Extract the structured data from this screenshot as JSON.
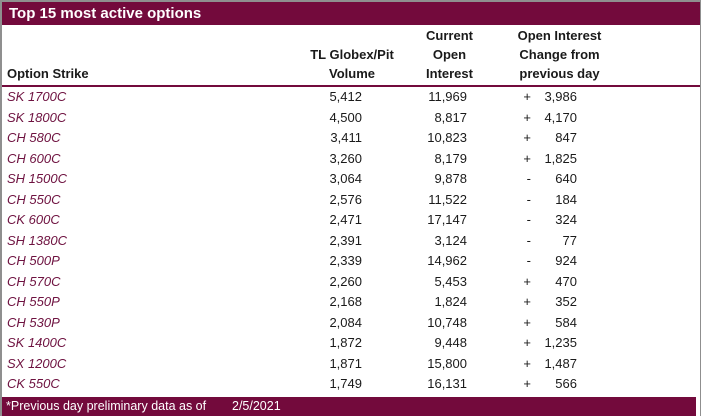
{
  "colors": {
    "maroon": "#730A3C",
    "strike_text": "#6E1240",
    "border_gray": "#8F8F8F"
  },
  "title": "Top 15 most active options",
  "table": {
    "columns": {
      "strike": [
        "Option Strike"
      ],
      "volume": [
        "TL Globex/Pit",
        "Volume"
      ],
      "open_interest": [
        "Current",
        "Open",
        "Interest"
      ],
      "change": [
        "Open Interest",
        "Change from",
        "previous day"
      ]
    },
    "rows": [
      {
        "strike": "SK 1700C",
        "volume": "5,412",
        "open_interest": "11,969",
        "change_sign": "+",
        "change_value": "3,986"
      },
      {
        "strike": "SK 1800C",
        "volume": "4,500",
        "open_interest": "8,817",
        "change_sign": "+",
        "change_value": "4,170"
      },
      {
        "strike": "CH 580C",
        "volume": "3,411",
        "open_interest": "10,823",
        "change_sign": "+",
        "change_value": "847"
      },
      {
        "strike": "CH 600C",
        "volume": "3,260",
        "open_interest": "8,179",
        "change_sign": "+",
        "change_value": "1,825"
      },
      {
        "strike": "SH 1500C",
        "volume": "3,064",
        "open_interest": "9,878",
        "change_sign": "-",
        "change_value": "640"
      },
      {
        "strike": "CH 550C",
        "volume": "2,576",
        "open_interest": "11,522",
        "change_sign": "-",
        "change_value": "184"
      },
      {
        "strike": "CK 600C",
        "volume": "2,471",
        "open_interest": "17,147",
        "change_sign": "-",
        "change_value": "324"
      },
      {
        "strike": "SH 1380C",
        "volume": "2,391",
        "open_interest": "3,124",
        "change_sign": "-",
        "change_value": "77"
      },
      {
        "strike": "CH 500P",
        "volume": "2,339",
        "open_interest": "14,962",
        "change_sign": "-",
        "change_value": "924"
      },
      {
        "strike": "CH 570C",
        "volume": "2,260",
        "open_interest": "5,453",
        "change_sign": "+",
        "change_value": "470"
      },
      {
        "strike": "CH 550P",
        "volume": "2,168",
        "open_interest": "1,824",
        "change_sign": "+",
        "change_value": "352"
      },
      {
        "strike": "CH 530P",
        "volume": "2,084",
        "open_interest": "10,748",
        "change_sign": "+",
        "change_value": "584"
      },
      {
        "strike": "SK 1400C",
        "volume": "1,872",
        "open_interest": "9,448",
        "change_sign": "+",
        "change_value": "1,235"
      },
      {
        "strike": "SX 1200C",
        "volume": "1,871",
        "open_interest": "15,800",
        "change_sign": "+",
        "change_value": "1,487"
      },
      {
        "strike": "CK 550C",
        "volume": "1,749",
        "open_interest": "16,131",
        "change_sign": "+",
        "change_value": "566"
      }
    ]
  },
  "footer": {
    "note": "*Previous day preliminary data as of",
    "date": "2/5/2021"
  }
}
